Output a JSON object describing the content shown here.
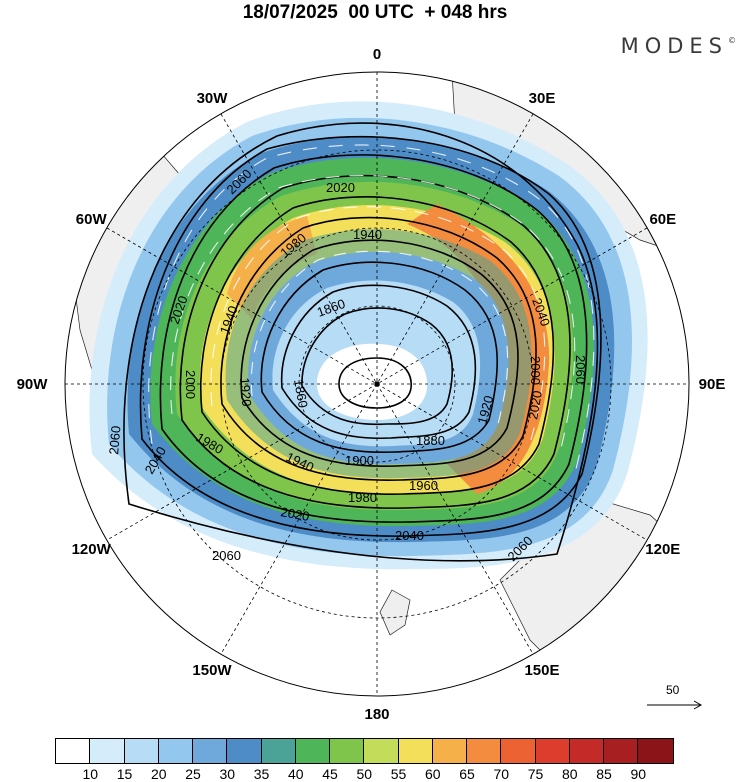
{
  "title": "18/07/2025  00 UTC  + 048 hrs",
  "brand": {
    "name": "MODES",
    "mark": "©"
  },
  "longitude_labels": [
    {
      "name": "0",
      "angle": 0
    },
    {
      "name": "30E",
      "angle": 30
    },
    {
      "name": "60E",
      "angle": 60
    },
    {
      "name": "90E",
      "angle": 90
    },
    {
      "name": "120E",
      "angle": 120
    },
    {
      "name": "150E",
      "angle": 150
    },
    {
      "name": "180",
      "angle": 180
    },
    {
      "name": "150W",
      "angle": 210
    },
    {
      "name": "120W",
      "angle": 240
    },
    {
      "name": "90W",
      "angle": 270
    },
    {
      "name": "60W",
      "angle": 300
    },
    {
      "name": "30W",
      "angle": 330
    }
  ],
  "contour_labels": [
    "2060",
    "2040",
    "2020",
    "2000",
    "1980",
    "1960",
    "1940",
    "1920",
    "1900",
    "1880",
    "1860"
  ],
  "reference_vector": {
    "label": "50"
  },
  "colorbar": {
    "ticks": [
      "10",
      "15",
      "20",
      "25",
      "30",
      "35",
      "40",
      "45",
      "50",
      "55",
      "60",
      "65",
      "70",
      "75",
      "80",
      "85",
      "90"
    ],
    "colors": [
      "#ffffff",
      "#d5ecfb",
      "#b6dcf6",
      "#94c7ee",
      "#6fa9dc",
      "#4d8cc6",
      "#4aa396",
      "#4eb558",
      "#7fc54c",
      "#c3dc5a",
      "#f3df5a",
      "#f5b04a",
      "#f38c3f",
      "#ec6232",
      "#dc3d2c",
      "#c42b28",
      "#a81f22",
      "#8a1418"
    ]
  },
  "chart_data": {
    "type": "map",
    "projection": "south polar stereographic",
    "field": "wind speed (shaded) and geopotential height (contours)",
    "contour_levels": [
      1860,
      1880,
      1900,
      1920,
      1940,
      1960,
      1980,
      2000,
      2020,
      2040,
      2060
    ],
    "shading_levels": [
      10,
      15,
      20,
      25,
      30,
      35,
      40,
      45,
      50,
      55,
      60,
      65,
      70,
      75,
      80,
      85,
      90
    ],
    "grid": true
  }
}
